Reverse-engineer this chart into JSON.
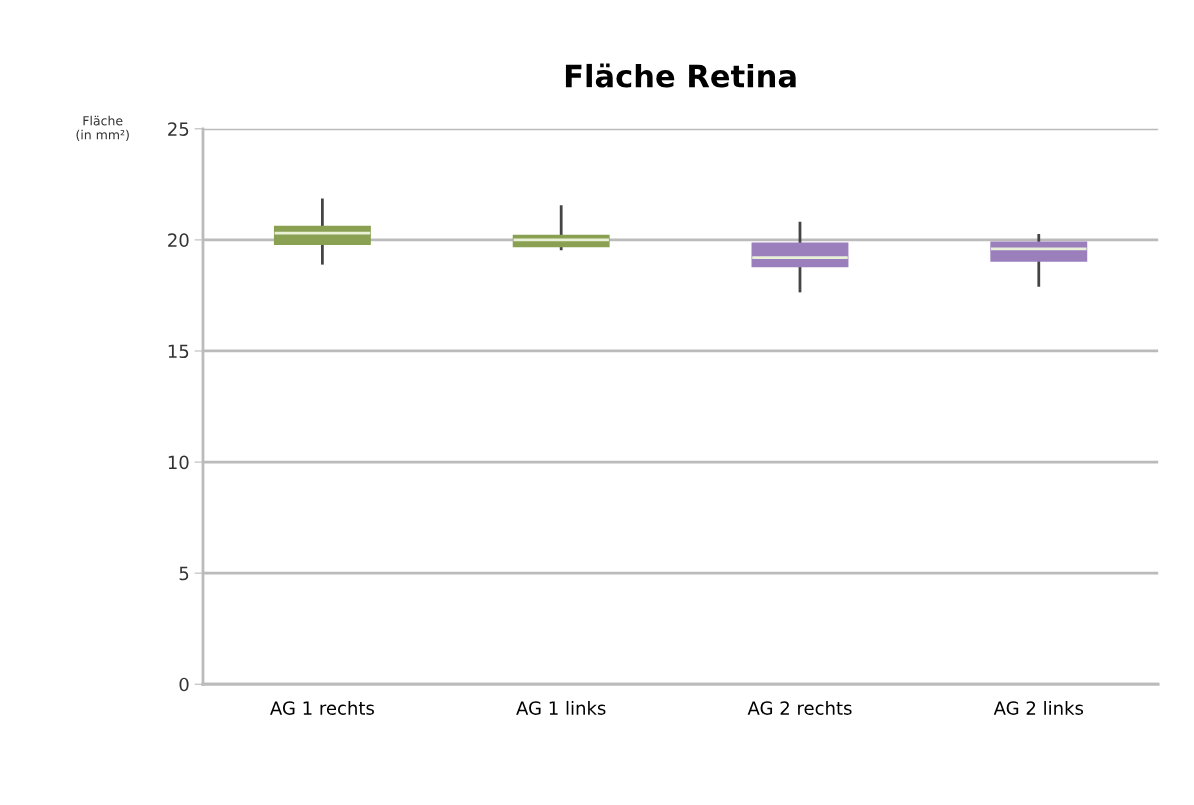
{
  "chart_data": {
    "type": "box",
    "title": "Fläche Retina",
    "ylabel": "Fläche\n(in mm²)",
    "categories": [
      "AG 1 rechts",
      "AG 1 links",
      "AG 2 rechts",
      "AG 2 links"
    ],
    "colors": [
      "#8aa052",
      "#8aa052",
      "#9b7fbd",
      "#9b7fbd"
    ],
    "boxes": [
      {
        "low": 18.95,
        "q1": 19.8,
        "median": 20.3,
        "q3": 20.6,
        "high": 21.8
      },
      {
        "low": 19.6,
        "q1": 19.7,
        "median": 20.0,
        "q3": 20.2,
        "high": 21.5
      },
      {
        "low": 17.7,
        "q1": 18.8,
        "median": 19.2,
        "q3": 19.85,
        "high": 20.75
      },
      {
        "low": 17.95,
        "q1": 19.05,
        "median": 19.6,
        "q3": 19.9,
        "high": 20.2
      }
    ],
    "ylim": [
      0,
      25
    ],
    "yticks": [
      0,
      5,
      10,
      15,
      20,
      25
    ],
    "grid": "y",
    "legend": false
  }
}
